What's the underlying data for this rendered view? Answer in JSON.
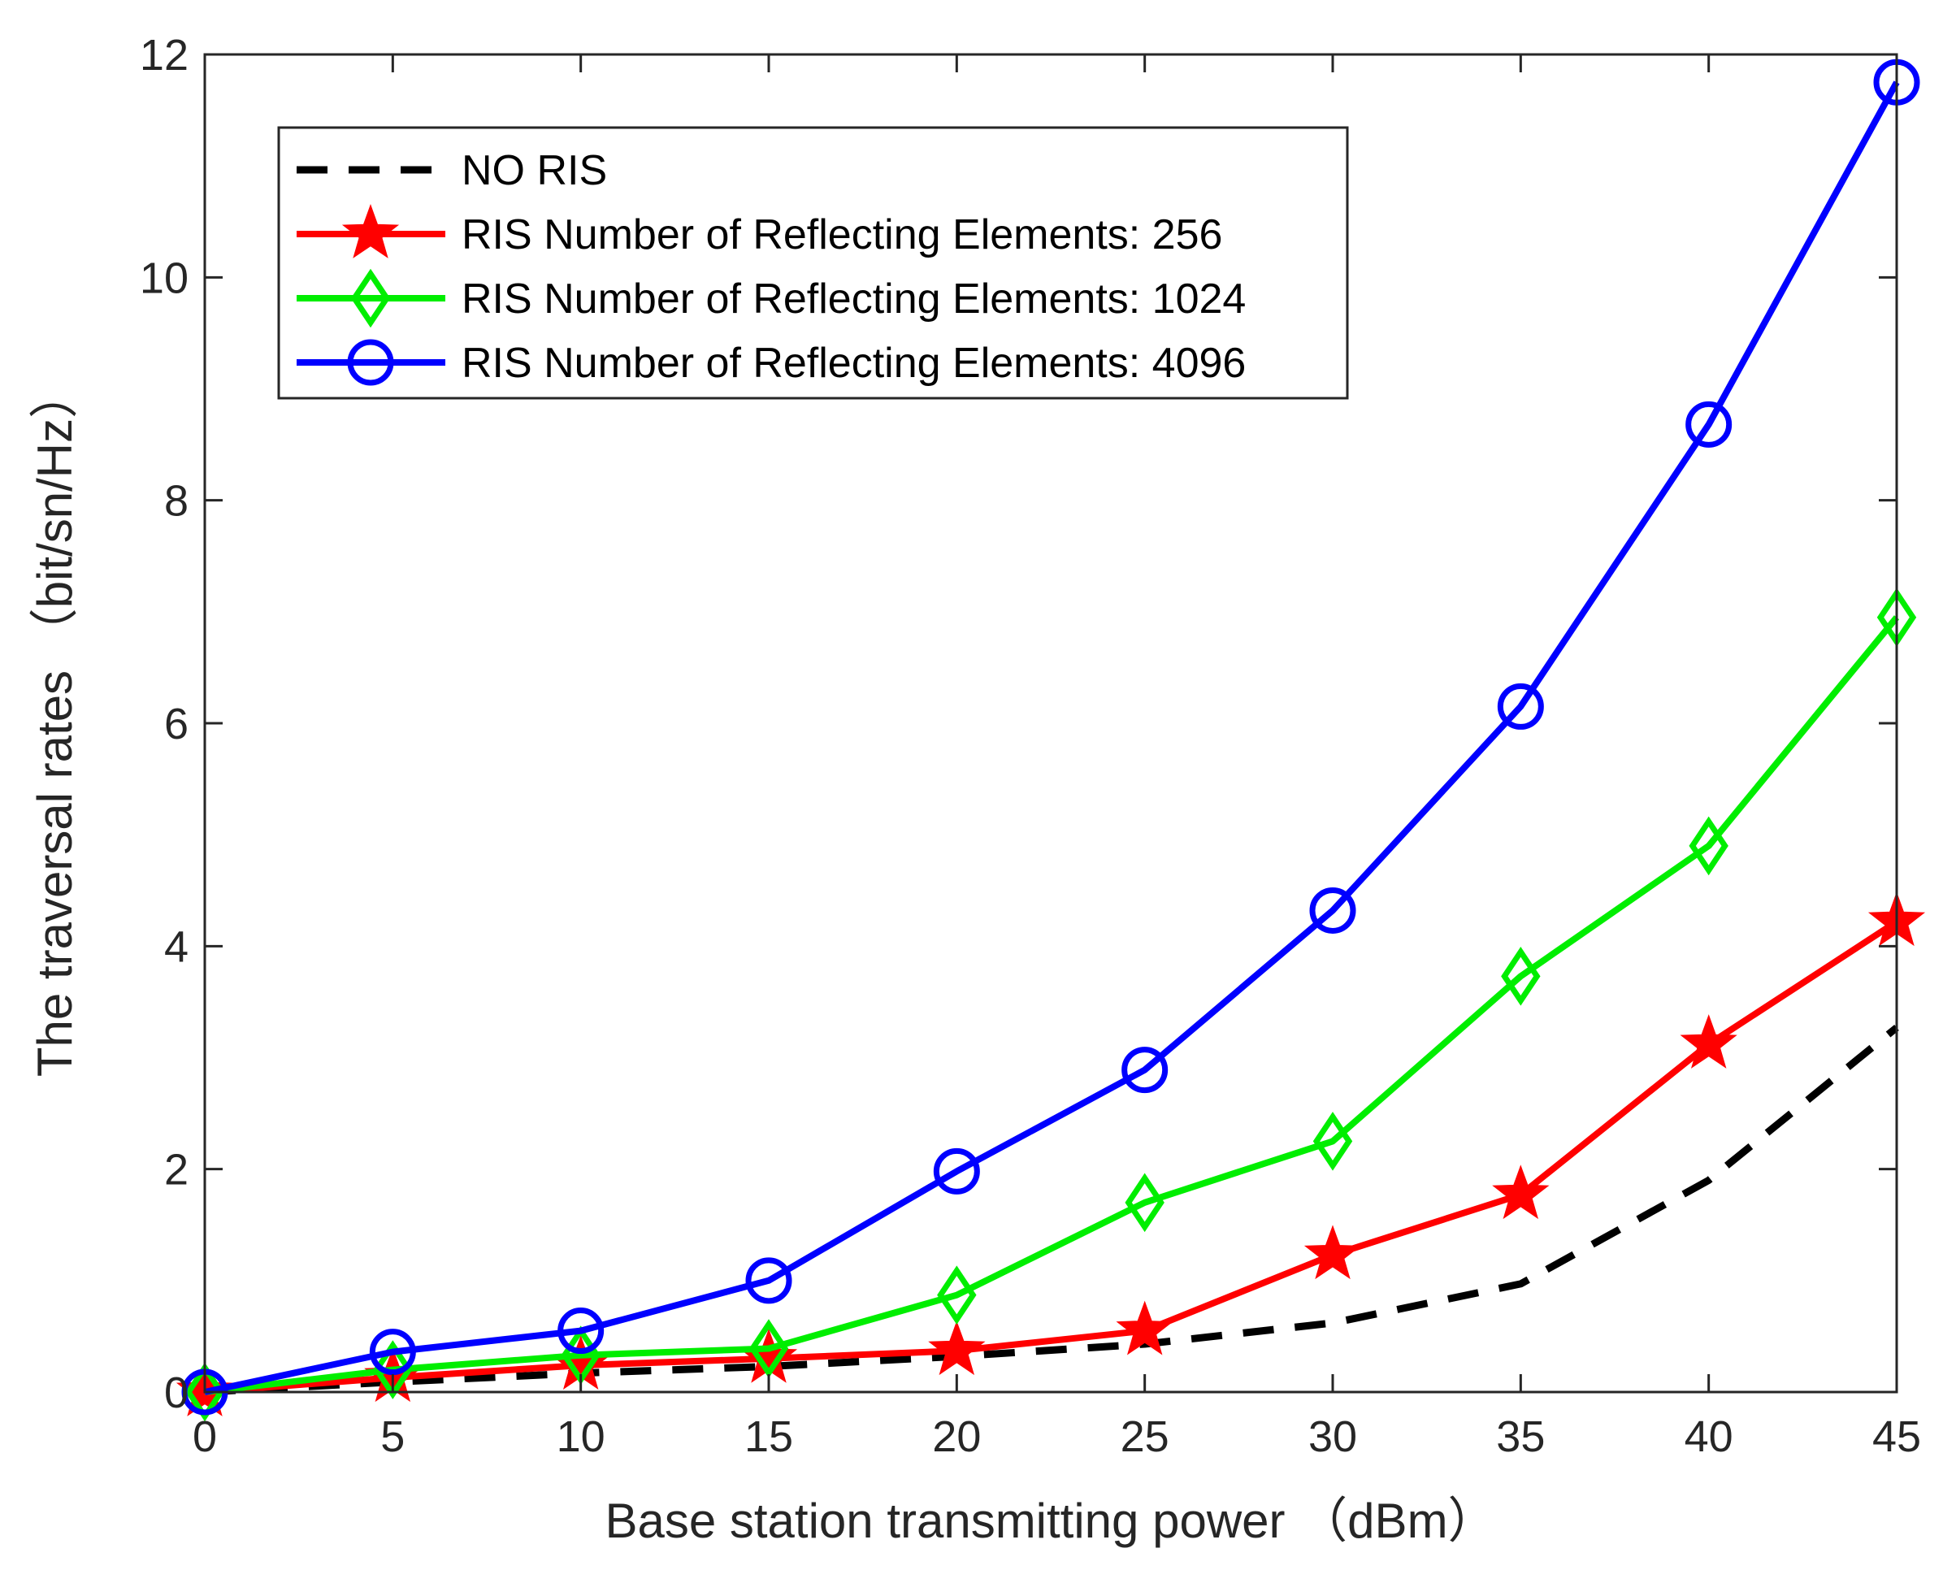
{
  "chart_data": {
    "type": "line",
    "title": "",
    "xlabel": "Base station transmitting power （dBm）",
    "ylabel": "The traversal rates （bit/sn/Hz）",
    "xlim": [
      0,
      45
    ],
    "ylim": [
      0,
      12
    ],
    "grid": false,
    "legend_position": "top-left",
    "x": [
      0,
      5,
      10,
      15,
      20,
      25,
      30,
      35,
      40,
      45
    ],
    "xticks": [
      "0",
      "5",
      "10",
      "15",
      "20",
      "25",
      "30",
      "35",
      "40",
      "45"
    ],
    "yticks": [
      "0",
      "2",
      "4",
      "6",
      "8",
      "10",
      "12"
    ],
    "series": [
      {
        "name": "NO RIS",
        "color": "#000000",
        "line_style": "dashed",
        "marker": "none",
        "values": [
          0,
          0.09,
          0.17,
          0.23,
          0.32,
          0.43,
          0.62,
          0.97,
          1.9,
          3.27
        ]
      },
      {
        "name": "RIS Number of Reflecting Elements: 256",
        "color": "#ff0000",
        "line_style": "solid",
        "marker": "star",
        "values": [
          0,
          0.13,
          0.24,
          0.3,
          0.37,
          0.55,
          1.23,
          1.77,
          3.12,
          4.22
        ]
      },
      {
        "name": "RIS Number of Reflecting Elements: 1024",
        "color": "#00ee00",
        "line_style": "solid",
        "marker": "diamond",
        "values": [
          0,
          0.2,
          0.33,
          0.39,
          0.87,
          1.7,
          2.25,
          3.73,
          4.9,
          6.95
        ]
      },
      {
        "name": "RIS Number of Reflecting Elements: 4096",
        "color": "#0000ff",
        "line_style": "solid",
        "marker": "circle",
        "values": [
          0,
          0.36,
          0.55,
          1.0,
          1.98,
          2.89,
          4.32,
          6.15,
          8.68,
          11.75
        ]
      }
    ]
  }
}
